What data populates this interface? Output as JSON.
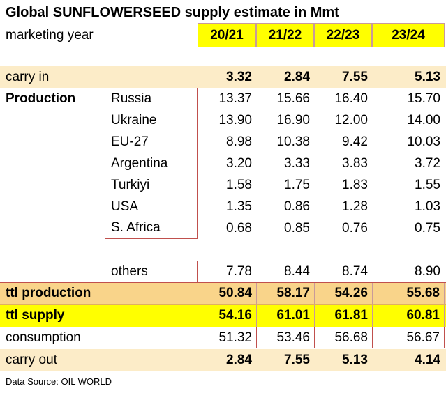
{
  "title": "Global SUNFLOWERSEED supply estimate in Mmt",
  "header": {
    "label": "marketing year",
    "years": [
      "20/21",
      "21/22",
      "22/23",
      "23/24"
    ]
  },
  "carry_in": {
    "label": "carry in",
    "values": [
      "3.32",
      "2.84",
      "7.55",
      "5.13"
    ]
  },
  "production": {
    "label": "Production",
    "countries": [
      {
        "name": "Russia",
        "values": [
          "13.37",
          "15.66",
          "16.40",
          "15.70"
        ]
      },
      {
        "name": "Ukraine",
        "values": [
          "13.90",
          "16.90",
          "12.00",
          "14.00"
        ]
      },
      {
        "name": "EU-27",
        "values": [
          "8.98",
          "10.38",
          "9.42",
          "10.03"
        ]
      },
      {
        "name": "Argentina",
        "values": [
          "3.20",
          "3.33",
          "3.83",
          "3.72"
        ]
      },
      {
        "name": "Turkiyi",
        "values": [
          "1.58",
          "1.75",
          "1.83",
          "1.55"
        ]
      },
      {
        "name": "USA",
        "values": [
          "1.35",
          "0.86",
          "1.28",
          "1.03"
        ]
      },
      {
        "name": "S. Africa",
        "values": [
          "0.68",
          "0.85",
          "0.76",
          "0.75"
        ]
      }
    ],
    "others": {
      "name": "others",
      "values": [
        "7.78",
        "8.44",
        "8.74",
        "8.90"
      ]
    }
  },
  "ttl_production": {
    "label": "ttl production",
    "values": [
      "50.84",
      "58.17",
      "54.26",
      "55.68"
    ]
  },
  "ttl_supply": {
    "label": "ttl supply",
    "values": [
      "54.16",
      "61.01",
      "61.81",
      "60.81"
    ]
  },
  "consumption": {
    "label": "consumption",
    "values": [
      "51.32",
      "53.46",
      "56.68",
      "56.67"
    ]
  },
  "carry_out": {
    "label": "carry out",
    "values": [
      "2.84",
      "7.55",
      "5.13",
      "4.14"
    ]
  },
  "source": "Data Source: OIL WORLD",
  "colors": {
    "highlight_yellow": "#ffff00",
    "cream": "#fcecc8",
    "orange": "#f9d48a",
    "border_red": "#c0504d"
  }
}
